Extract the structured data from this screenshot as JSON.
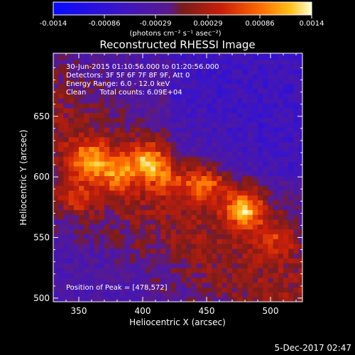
{
  "chart_data": {
    "type": "heatmap",
    "title": "Reconstructed RHESSI Image",
    "xlabel": "Heliocentric X (arcsec)",
    "ylabel": "Heliocentric Y (arcsec)",
    "xlim": [
      330,
      525
    ],
    "ylim": [
      497,
      702
    ],
    "x_ticks": [
      350,
      400,
      450,
      500
    ],
    "y_ticks": [
      500,
      550,
      600,
      650
    ],
    "colorbar": {
      "min": -0.0014,
      "max": 0.0014,
      "ticks": [
        "-0.0014",
        "-0.00086",
        "-0.00029",
        "0.00029",
        "0.00086",
        "0.0014"
      ],
      "unit_label": "(photons cm⁻² s⁻¹ asec⁻²)"
    },
    "annotations": [
      "30-Jun-2015 01:10:56.000 to 01:20:56.000",
      "Detectors: 3F 5F 6F 7F 8F 9F, Att 0",
      "Energy Range: 6.0 - 12.0 keV",
      "Clean      Total counts: 6.09E+04"
    ],
    "peak_label": "Position of Peak = [478,572]",
    "peak": [
      478,
      572
    ],
    "sources": [
      {
        "x": 478,
        "y": 572,
        "value": 0.0014
      },
      {
        "x": 402,
        "y": 611,
        "value": 0.00115
      },
      {
        "x": 356,
        "y": 612,
        "value": 0.00105
      },
      {
        "x": 447,
        "y": 594,
        "value": 0.00095
      },
      {
        "x": 378,
        "y": 600,
        "value": 0.0008
      },
      {
        "x": 503,
        "y": 548,
        "value": 0.0006
      },
      {
        "x": 345,
        "y": 580,
        "value": 0.0006
      },
      {
        "x": 420,
        "y": 596,
        "value": 0.0006
      }
    ],
    "grid": false
  },
  "footer": {
    "timestamp": "5-Dec-2017 02:47"
  }
}
